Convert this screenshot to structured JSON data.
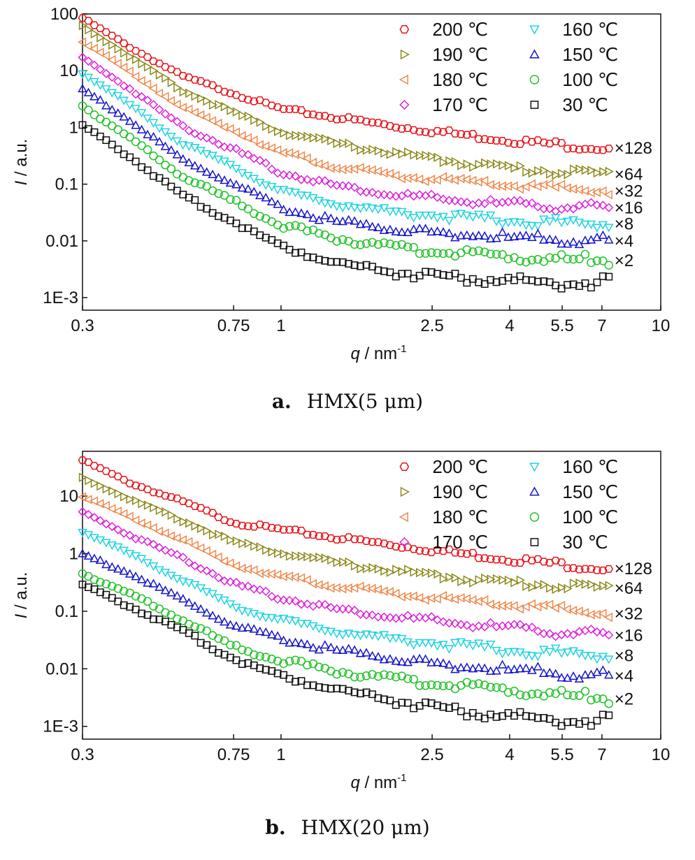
{
  "chart_data": [
    {
      "type": "scatter",
      "caption_label": "a.",
      "caption_text": "HMX(5 μm)",
      "xlabel": "q / nm",
      "xlabel_sup": "-1",
      "ylabel": "I / a.u.",
      "xscale": "log",
      "yscale": "log",
      "xlim": [
        0.3,
        10
      ],
      "ylim": [
        0.0006,
        100
      ],
      "xticks": [
        0.3,
        0.75,
        1,
        2.5,
        4,
        5.5,
        7,
        10
      ],
      "xtick_labels": [
        "0.3",
        "0.75",
        "1",
        "2.5",
        "4",
        "5.5",
        "7",
        "10"
      ],
      "yticks": [
        0.001,
        0.01,
        0.1,
        1,
        10,
        100
      ],
      "ytick_labels": [
        "1E-3",
        "0.01",
        "0.1",
        "1",
        "10",
        "100"
      ],
      "grid": false,
      "legend_position": "top-right",
      "series": [
        {
          "name": "200 ℃",
          "color": "#e8141b",
          "marker": "hexagon",
          "multiplier": "×128",
          "values": [
            85.0,
            26.0,
            8.0,
            4.0,
            2.1,
            1.5,
            1.05,
            0.75,
            0.55,
            0.43
          ]
        },
        {
          "name": "190 ℃",
          "color": "#8b8a1a",
          "marker": "triangle-right",
          "multiplier": "×64",
          "values": [
            62.0,
            18.0,
            4.5,
            1.85,
            0.85,
            0.52,
            0.35,
            0.24,
            0.18,
            0.15
          ]
        },
        {
          "name": "180 ℃",
          "color": "#f0884b",
          "marker": "triangle-left",
          "multiplier": "×32",
          "values": [
            33.0,
            9.5,
            2.2,
            0.9,
            0.36,
            0.2,
            0.14,
            0.11,
            0.09,
            0.075
          ]
        },
        {
          "name": "170 ℃",
          "color": "#dd22dd",
          "marker": "diamond",
          "multiplier": "×16",
          "values": [
            17.0,
            4.8,
            1.05,
            0.41,
            0.16,
            0.095,
            0.065,
            0.05,
            0.042,
            0.038
          ]
        },
        {
          "name": "160 ℃",
          "color": "#21d3e0",
          "marker": "triangle-down",
          "multiplier": "×8",
          "values": [
            9.0,
            2.5,
            0.52,
            0.2,
            0.075,
            0.045,
            0.032,
            0.026,
            0.022,
            0.02
          ]
        },
        {
          "name": "150 ℃",
          "color": "#1414cc",
          "marker": "triangle-up",
          "multiplier": "×4",
          "values": [
            4.8,
            1.3,
            0.27,
            0.1,
            0.038,
            0.022,
            0.016,
            0.013,
            0.011,
            0.01
          ]
        },
        {
          "name": "100 ℃",
          "color": "#22c22a",
          "marker": "circle",
          "multiplier": "×2",
          "values": [
            2.4,
            0.65,
            0.135,
            0.05,
            0.019,
            0.011,
            0.0075,
            0.006,
            0.005,
            0.0045
          ]
        },
        {
          "name": "30 ℃",
          "color": "#111111",
          "marker": "square",
          "multiplier": "",
          "values": [
            1.1,
            0.3,
            0.062,
            0.022,
            0.008,
            0.0042,
            0.0028,
            0.0022,
            0.0019,
            0.0018
          ]
        }
      ],
      "x": [
        0.3,
        0.4,
        0.55,
        0.75,
        1.0,
        1.4,
        2.0,
        3.0,
        4.5,
        7.3
      ]
    },
    {
      "type": "scatter",
      "caption_label": "b.",
      "caption_text": "HMX(20 μm)",
      "xlabel": "q / nm",
      "xlabel_sup": "-1",
      "ylabel": "I / a.u.",
      "xscale": "log",
      "yscale": "log",
      "xlim": [
        0.3,
        10
      ],
      "ylim": [
        0.0006,
        60
      ],
      "xticks": [
        0.3,
        0.75,
        1,
        2.5,
        4,
        5.5,
        7,
        10
      ],
      "xtick_labels": [
        "0.3",
        "0.75",
        "1",
        "2.5",
        "4",
        "5.5",
        "7",
        "10"
      ],
      "yticks": [
        0.001,
        0.01,
        0.1,
        1,
        10
      ],
      "ytick_labels": [
        "1E-3",
        "0.01",
        "0.1",
        "1",
        "10"
      ],
      "grid": false,
      "legend_position": "top-right",
      "series": [
        {
          "name": "200 ℃",
          "color": "#e8141b",
          "marker": "hexagon",
          "multiplier": "×128",
          "values": [
            42.0,
            17.0,
            8.0,
            3.5,
            2.6,
            1.9,
            1.4,
            1.0,
            0.75,
            0.55
          ]
        },
        {
          "name": "190 ℃",
          "color": "#8b8a1a",
          "marker": "triangle-right",
          "multiplier": "×64",
          "values": [
            21.0,
            9.0,
            3.8,
            1.6,
            1.05,
            0.7,
            0.5,
            0.37,
            0.3,
            0.25
          ]
        },
        {
          "name": "180 ℃",
          "color": "#f0884b",
          "marker": "triangle-left",
          "multiplier": "×32",
          "values": [
            10.0,
            4.3,
            1.7,
            0.65,
            0.4,
            0.27,
            0.2,
            0.15,
            0.12,
            0.09
          ]
        },
        {
          "name": "170 ℃",
          "color": "#dd22dd",
          "marker": "diamond",
          "multiplier": "×16",
          "values": [
            5.3,
            2.1,
            0.85,
            0.3,
            0.17,
            0.11,
            0.08,
            0.06,
            0.048,
            0.038
          ]
        },
        {
          "name": "160 ℃",
          "color": "#21d3e0",
          "marker": "triangle-down",
          "multiplier": "×8",
          "values": [
            2.4,
            1.0,
            0.35,
            0.12,
            0.07,
            0.045,
            0.033,
            0.025,
            0.02,
            0.017
          ]
        },
        {
          "name": "150 ℃",
          "color": "#1414cc",
          "marker": "triangle-up",
          "multiplier": "×4",
          "values": [
            1.0,
            0.45,
            0.16,
            0.055,
            0.033,
            0.021,
            0.015,
            0.011,
            0.009,
            0.0075
          ]
        },
        {
          "name": "100 ℃",
          "color": "#22c22a",
          "marker": "circle",
          "multiplier": "×2",
          "values": [
            0.45,
            0.2,
            0.07,
            0.024,
            0.014,
            0.009,
            0.0065,
            0.005,
            0.004,
            0.003
          ]
        },
        {
          "name": "30 ℃",
          "color": "#111111",
          "marker": "square",
          "multiplier": "",
          "values": [
            0.29,
            0.12,
            0.045,
            0.015,
            0.0075,
            0.0045,
            0.0028,
            0.0018,
            0.0014,
            0.0012
          ]
        }
      ],
      "x": [
        0.3,
        0.4,
        0.55,
        0.75,
        1.0,
        1.4,
        2.0,
        3.0,
        4.5,
        7.3
      ]
    }
  ]
}
